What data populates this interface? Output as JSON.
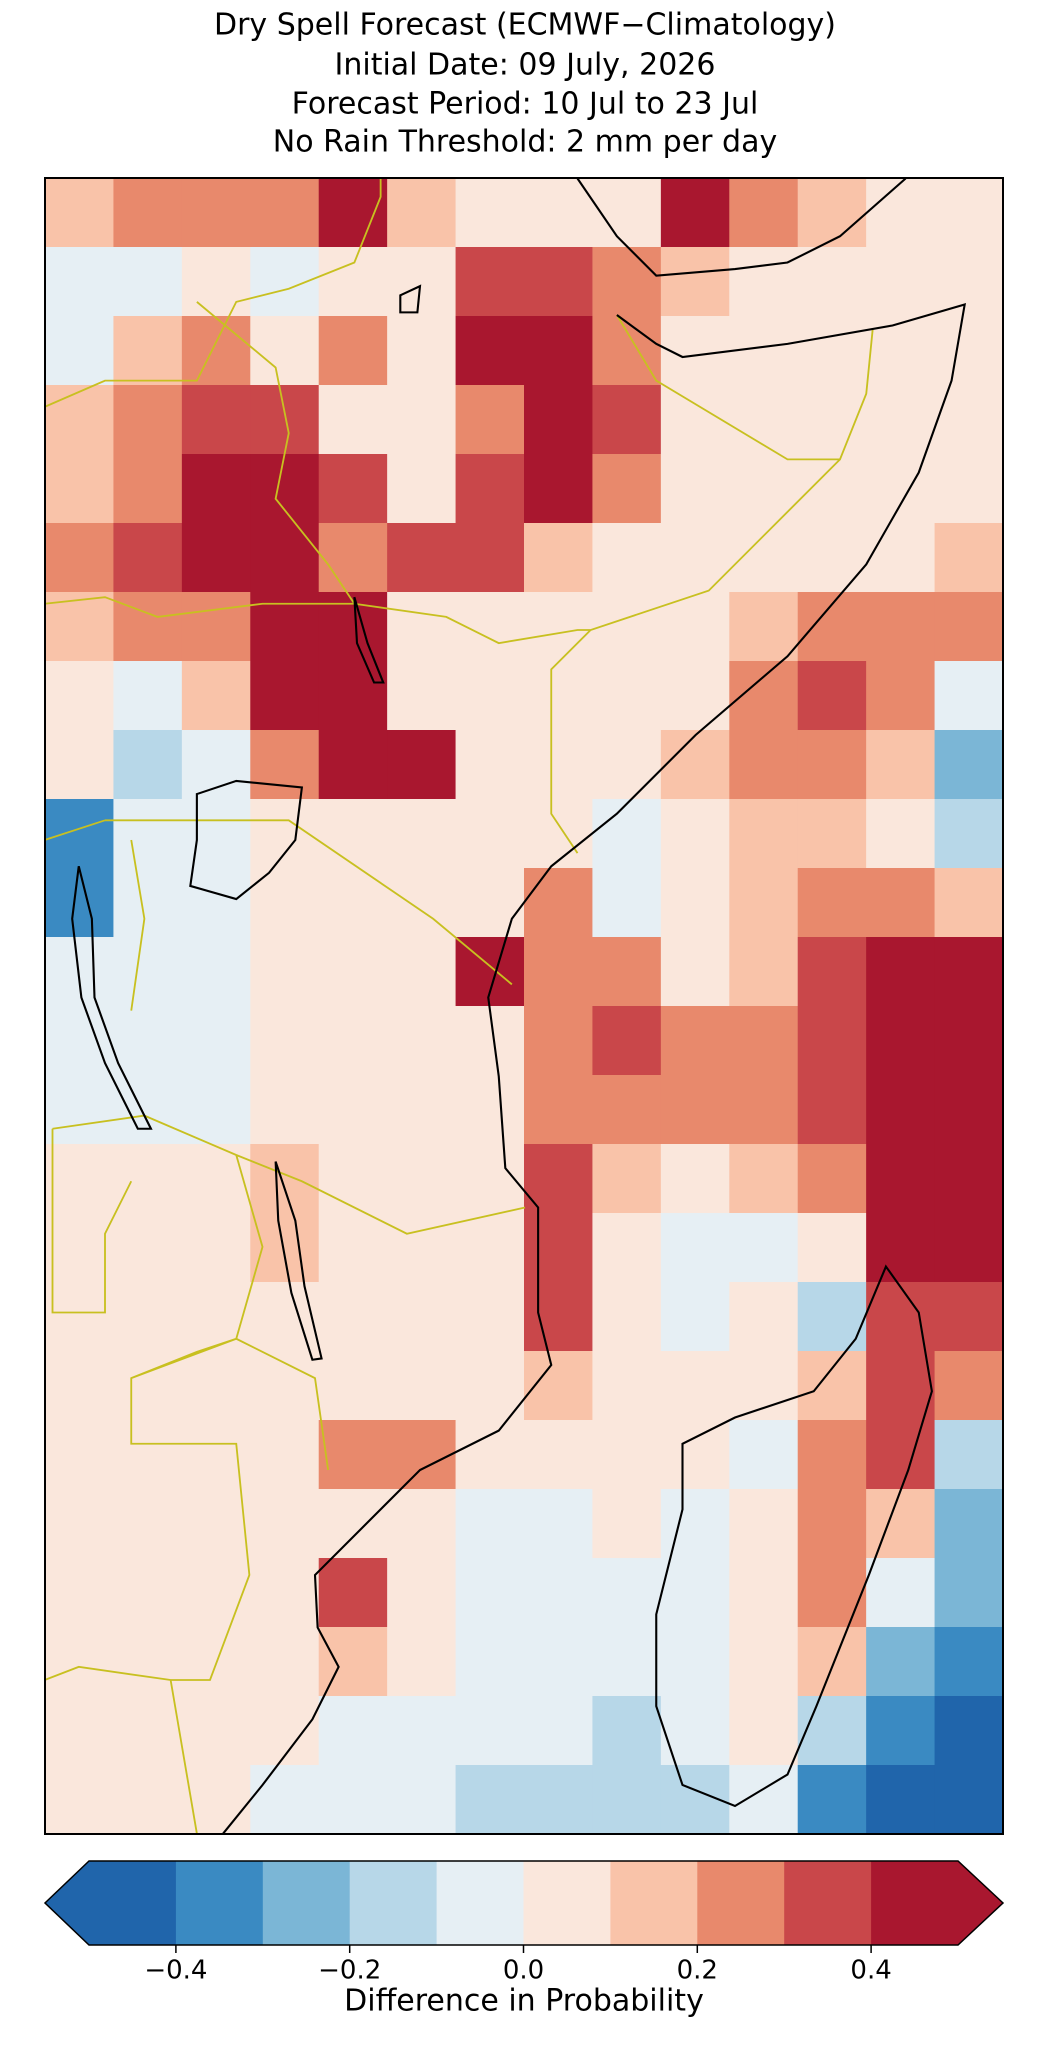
{
  "chart_data": {
    "type": "heatmap",
    "title": "Dry Spell Forecast (ECMWF−Climatology)",
    "subtitle": [
      "Initial Date: 09 July, 2026",
      "Forecast Period: 10 Jul to 23 Jul",
      "No Rain Threshold: 2 mm per day"
    ],
    "values": [
      [
        0.1,
        0.2,
        0.2,
        0.2,
        0.4,
        0.1,
        0.05,
        0.05,
        0.05,
        0.4,
        0.2,
        0.1,
        0.05,
        0.05
      ],
      [
        -0.1,
        -0.1,
        0.05,
        -0.1,
        0.05,
        0.05,
        0.3,
        0.3,
        0.2,
        0.1,
        0.05,
        0.05,
        0.05,
        0.05
      ],
      [
        -0.1,
        0.1,
        0.2,
        0.05,
        0.2,
        0.05,
        0.4,
        0.4,
        0.2,
        0.05,
        0.05,
        0.05,
        0.05,
        0.05
      ],
      [
        0.1,
        0.2,
        0.3,
        0.3,
        0.05,
        0.05,
        0.2,
        0.4,
        0.3,
        0.05,
        0.05,
        0.05,
        0.05,
        0.05
      ],
      [
        0.1,
        0.2,
        0.4,
        0.4,
        0.3,
        0.05,
        0.3,
        0.4,
        0.2,
        0.05,
        0.05,
        0.05,
        0.05,
        0.05
      ],
      [
        0.2,
        0.3,
        0.5,
        0.4,
        0.2,
        0.3,
        0.3,
        0.1,
        0.05,
        0.05,
        0.05,
        0.05,
        0.05,
        0.1
      ],
      [
        0.1,
        0.2,
        0.2,
        0.4,
        0.4,
        0.05,
        0.05,
        0.05,
        0.05,
        0.05,
        0.1,
        0.2,
        0.2,
        0.2
      ],
      [
        0.05,
        -0.1,
        0.1,
        0.4,
        0.4,
        0.05,
        0.05,
        0.05,
        0.05,
        0.05,
        0.2,
        0.3,
        0.2,
        -0.1
      ],
      [
        0.05,
        -0.2,
        -0.1,
        0.2,
        0.4,
        0.5,
        0.05,
        0.05,
        0.05,
        0.1,
        0.2,
        0.2,
        0.1,
        -0.3
      ],
      [
        -0.4,
        -0.1,
        -0.1,
        0.05,
        0.05,
        0.05,
        0.05,
        0.05,
        -0.05,
        0.05,
        0.1,
        0.1,
        0.05,
        -0.2
      ],
      [
        -0.4,
        -0.1,
        -0.05,
        0.05,
        0.05,
        0.05,
        0.05,
        0.2,
        -0.05,
        0.05,
        0.1,
        0.2,
        0.2,
        0.1
      ],
      [
        -0.1,
        -0.1,
        -0.05,
        0.05,
        0.05,
        0.05,
        0.4,
        0.2,
        0.2,
        0.05,
        0.1,
        0.3,
        0.4,
        0.5
      ],
      [
        -0.1,
        -0.1,
        -0.05,
        0.05,
        0.05,
        0.05,
        0.05,
        0.2,
        0.3,
        0.2,
        0.2,
        0.3,
        0.5,
        0.5
      ],
      [
        -0.05,
        -0.05,
        -0.05,
        0.05,
        0.05,
        0.05,
        0.05,
        0.2,
        0.2,
        0.2,
        0.2,
        0.3,
        0.4,
        0.5
      ],
      [
        0.05,
        0.05,
        0.05,
        0.1,
        0.05,
        0.05,
        0.05,
        0.3,
        0.1,
        0.05,
        0.1,
        0.2,
        0.4,
        0.5
      ],
      [
        0.05,
        0.05,
        0.05,
        0.1,
        0.05,
        0.05,
        0.05,
        0.3,
        0.05,
        -0.05,
        -0.05,
        0.05,
        0.4,
        0.5
      ],
      [
        0.05,
        0.05,
        0.05,
        0.05,
        0.05,
        0.05,
        0.05,
        0.3,
        0.05,
        -0.05,
        0.05,
        -0.2,
        0.3,
        0.3
      ],
      [
        0.05,
        0.05,
        0.05,
        0.05,
        0.05,
        0.05,
        0.05,
        0.1,
        0.05,
        0.05,
        0.05,
        0.1,
        0.3,
        0.2
      ],
      [
        0.05,
        0.05,
        0.05,
        0.05,
        0.2,
        0.2,
        0.05,
        0.05,
        0.05,
        0.05,
        -0.05,
        0.2,
        0.3,
        -0.2
      ],
      [
        0.05,
        0.05,
        0.05,
        0.05,
        0.05,
        0.05,
        -0.05,
        -0.05,
        0.05,
        -0.05,
        0.05,
        0.2,
        0.1,
        -0.3
      ],
      [
        0.05,
        0.05,
        0.05,
        0.05,
        0.3,
        0.05,
        -0.05,
        -0.05,
        -0.05,
        -0.05,
        0.05,
        0.2,
        -0.1,
        -0.3
      ],
      [
        0.05,
        0.05,
        0.05,
        0.05,
        0.1,
        0.05,
        -0.05,
        -0.05,
        -0.05,
        -0.05,
        0.05,
        0.1,
        -0.3,
        -0.4
      ],
      [
        0.05,
        0.05,
        0.05,
        0.05,
        -0.05,
        -0.1,
        -0.1,
        -0.1,
        -0.2,
        -0.05,
        0.05,
        -0.2,
        -0.4,
        -0.5
      ],
      [
        0.05,
        0.05,
        0.05,
        -0.05,
        -0.1,
        -0.1,
        -0.2,
        -0.2,
        -0.2,
        -0.2,
        -0.1,
        -0.4,
        -0.5,
        -0.5
      ]
    ],
    "colorbar": {
      "label": "Difference in Probability",
      "extend": "both",
      "levels": [
        -0.5,
        -0.4,
        -0.3,
        -0.2,
        -0.1,
        0,
        0.1,
        0.2,
        0.3,
        0.4,
        0.5
      ],
      "colors": [
        "#2065ab",
        "#3a8ac2",
        "#7bb6d6",
        "#b7d7e8",
        "#e6eff4",
        "#fae7dc",
        "#f9c3a9",
        "#e8896c",
        "#c9474a",
        "#a9172f"
      ],
      "ticks": [
        {
          "value": -0.4,
          "label": "−0.4"
        },
        {
          "value": -0.2,
          "label": "−0.2"
        },
        {
          "value": 0,
          "label": "0.0"
        },
        0.2,
        0.4
      ]
    }
  }
}
